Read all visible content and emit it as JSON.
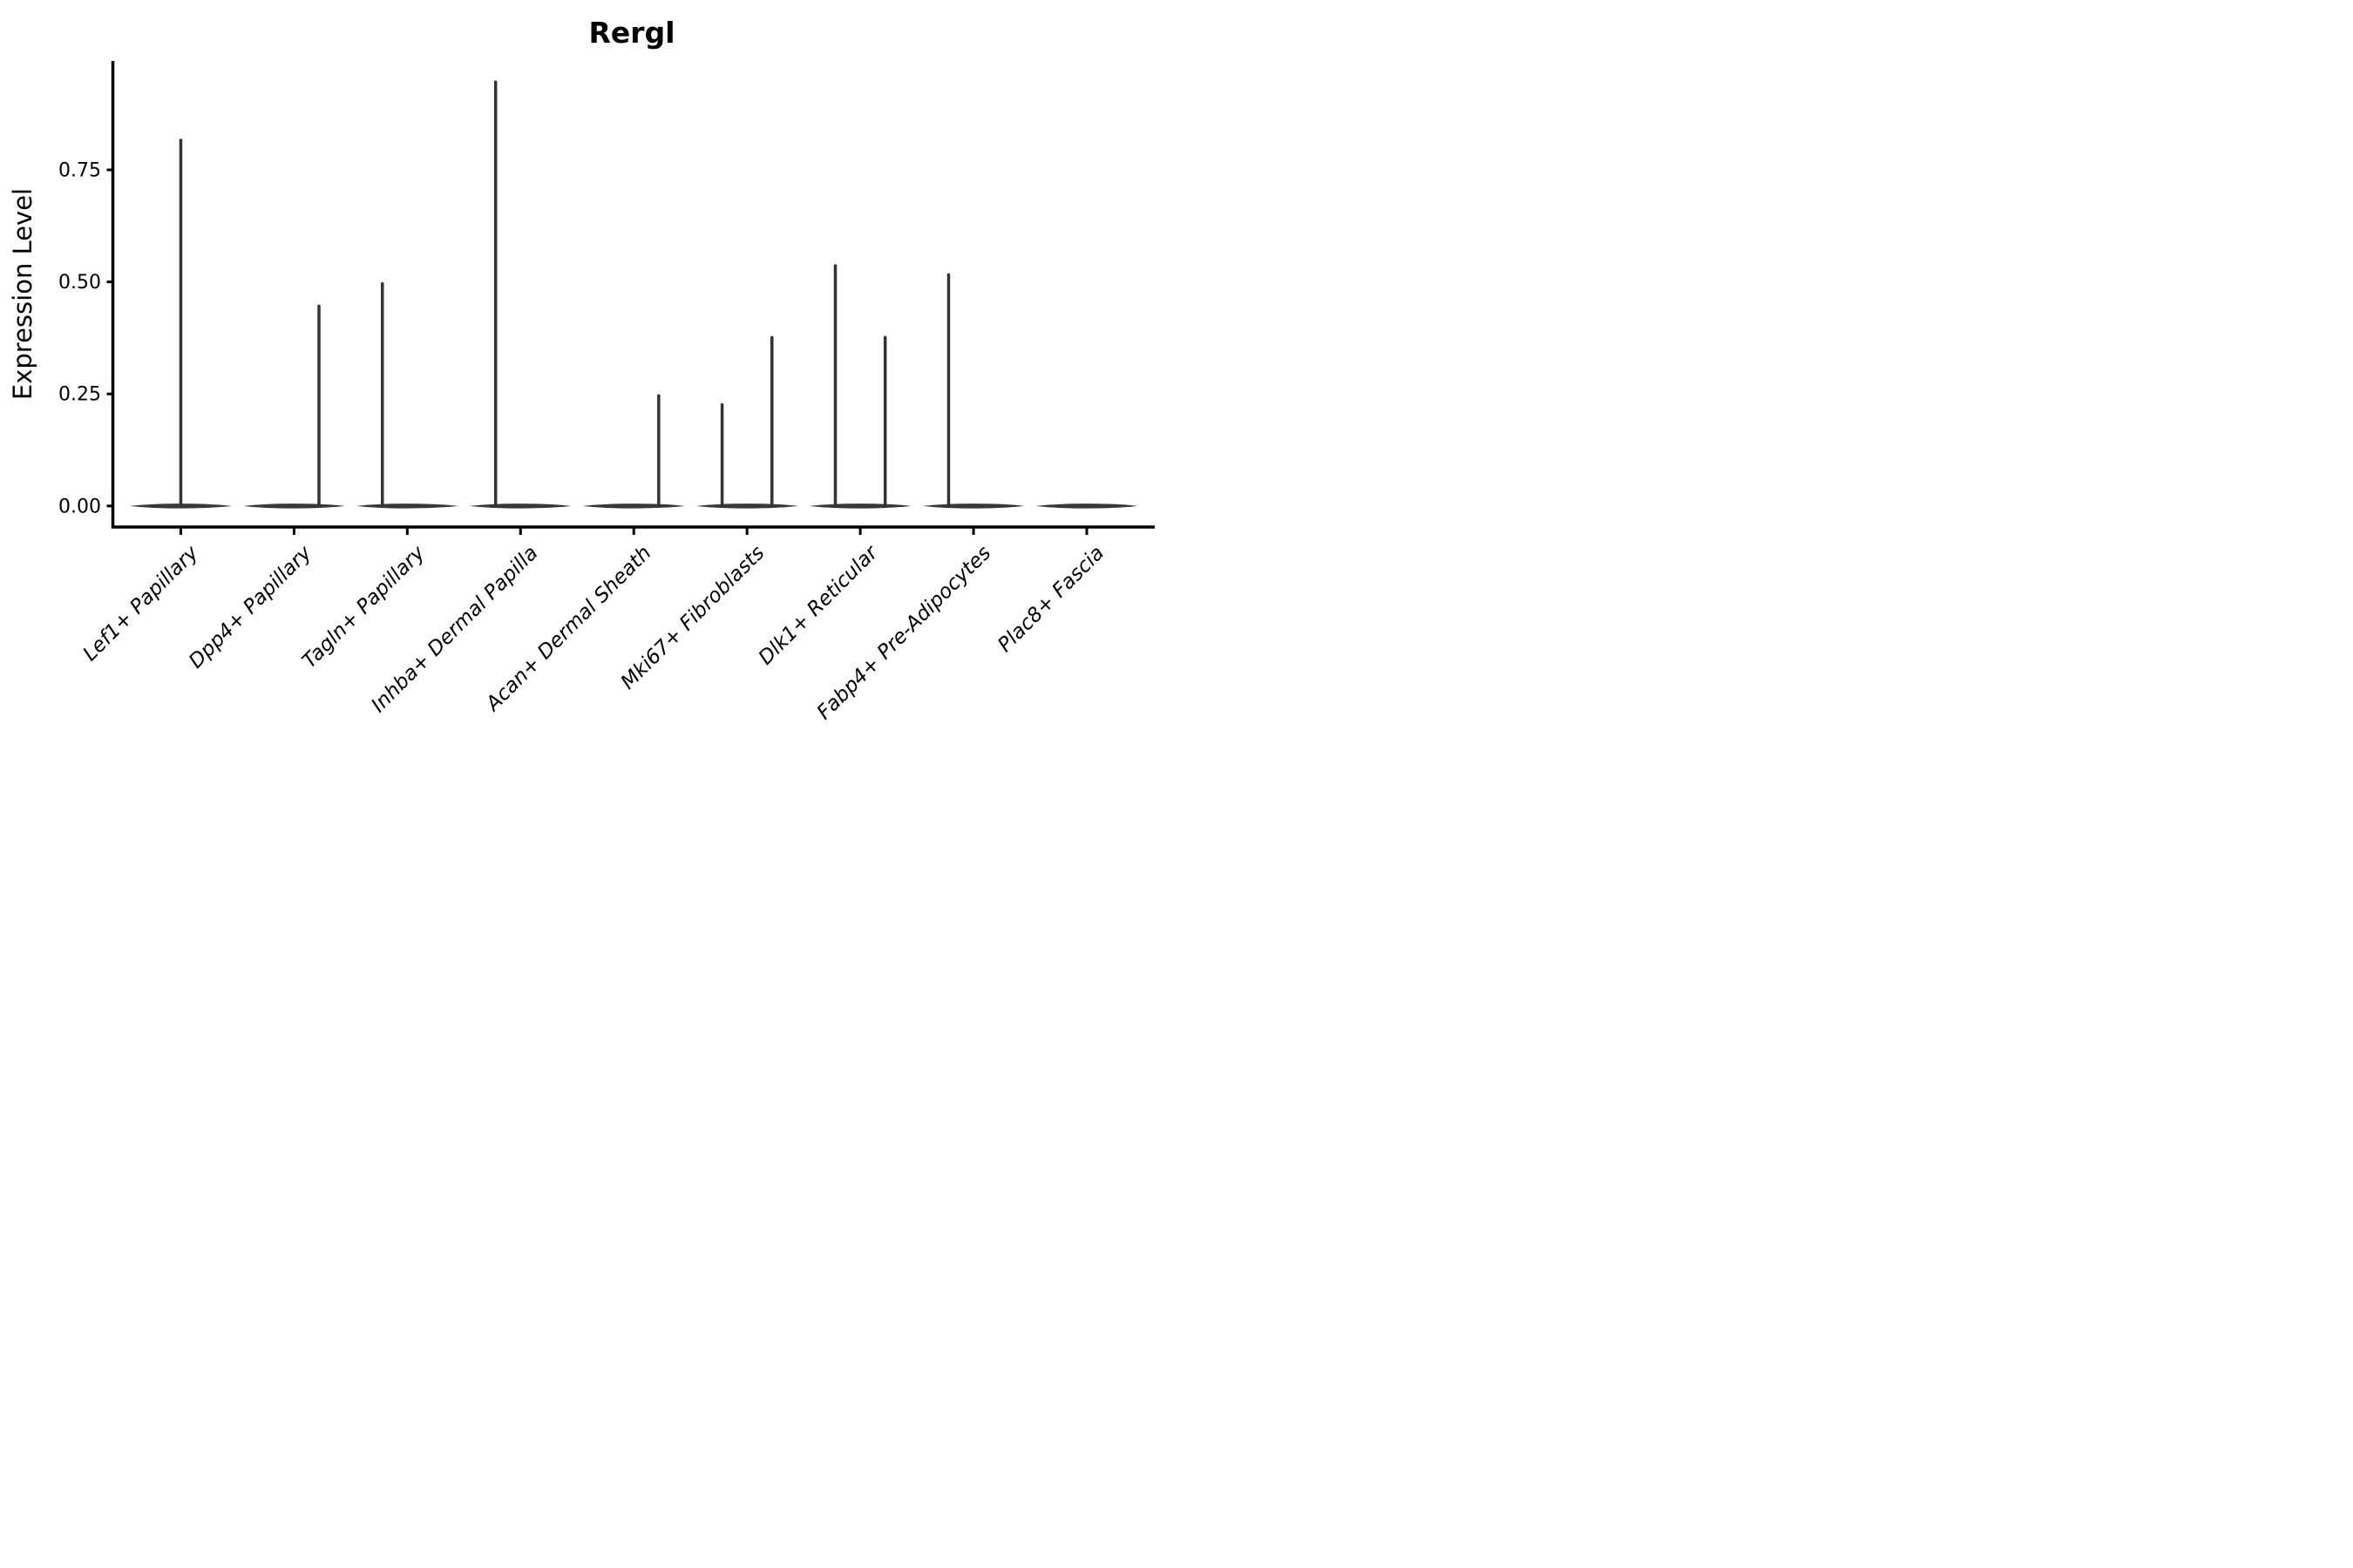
{
  "figure": {
    "title": "Rergl",
    "ylabel": "Expression Level"
  },
  "chart_data": {
    "type": "violin",
    "title": "Rergl",
    "xlabel": "",
    "ylabel": "Expression Level",
    "categories": [
      "Lef1+ Papillary",
      "Dpp4+ Papillary",
      "Tagln+ Papillary",
      "Inhba+ Dermal Papilla",
      "Acan+ Dermal Sheath",
      "Mki67+ Fibroblasts",
      "Dlk1+ Reticular",
      "Fabp4+ Pre-Adipocytes",
      "Plac8+ Fascia"
    ],
    "y_ticks": [
      0.0,
      0.25,
      0.5,
      0.75
    ],
    "y_tick_labels": [
      "0.00",
      "0.25",
      "0.50",
      "0.75"
    ],
    "ylim": [
      -0.047,
      0.993
    ],
    "grid": false,
    "legend_position": "none",
    "violins": [
      {
        "category": "Lef1+ Papillary",
        "zero_bulk": true,
        "tails": [
          {
            "offset": 0.0,
            "max": 0.82
          }
        ]
      },
      {
        "category": "Dpp4+ Papillary",
        "zero_bulk": true,
        "tails": [
          {
            "offset": 0.22,
            "max": 0.45
          }
        ]
      },
      {
        "category": "Tagln+ Papillary",
        "zero_bulk": true,
        "tails": [
          {
            "offset": -0.22,
            "max": 0.5
          }
        ]
      },
      {
        "category": "Inhba+ Dermal Papilla",
        "zero_bulk": true,
        "tails": [
          {
            "offset": -0.22,
            "max": 0.95
          }
        ]
      },
      {
        "category": "Acan+ Dermal Sheath",
        "zero_bulk": true,
        "tails": [
          {
            "offset": 0.22,
            "max": 0.25
          }
        ]
      },
      {
        "category": "Mki67+ Fibroblasts",
        "zero_bulk": true,
        "tails": [
          {
            "offset": -0.22,
            "max": 0.23
          },
          {
            "offset": 0.22,
            "max": 0.38
          }
        ]
      },
      {
        "category": "Dlk1+ Reticular",
        "zero_bulk": true,
        "tails": [
          {
            "offset": -0.22,
            "max": 0.54
          },
          {
            "offset": 0.22,
            "max": 0.38
          }
        ]
      },
      {
        "category": "Fabp4+ Pre-Adipocytes",
        "zero_bulk": true,
        "tails": [
          {
            "offset": -0.22,
            "max": 0.52
          }
        ]
      },
      {
        "category": "Plac8+ Fascia",
        "zero_bulk": true,
        "tails": []
      }
    ],
    "style": {
      "line_color": "#333333",
      "fill_color": "#383838",
      "axis_color": "#000000",
      "background": "#ffffff",
      "violin_width_frac": 0.9,
      "tail_offset_note": "offset is a fraction of one category slot width"
    }
  }
}
